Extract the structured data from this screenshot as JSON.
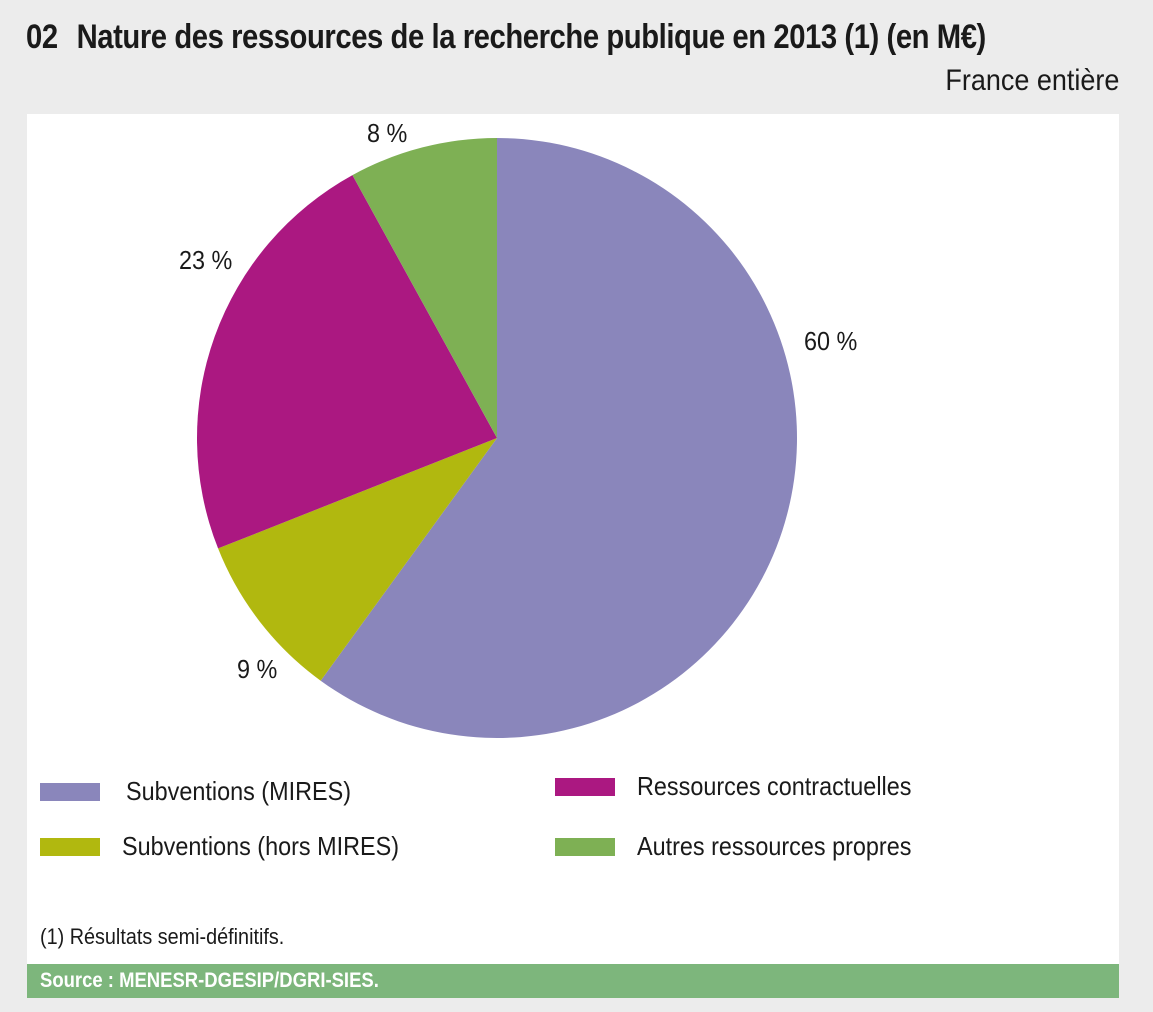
{
  "header": {
    "number": "02",
    "title": "Nature des ressources de la recherche publique en 2013 (1) (en M€)",
    "subtitle": "France entière"
  },
  "chart_data": {
    "type": "pie",
    "title": "Nature des ressources de la recherche publique en 2013 (1) (en M€)",
    "subtitle": "France entière",
    "slices": [
      {
        "name": "Subventions (MIRES)",
        "value": 60,
        "label": "60 %",
        "color": "#8a86bb"
      },
      {
        "name": "Subventions (hors MIRES)",
        "value": 9,
        "label": "9 %",
        "color": "#b1b80f"
      },
      {
        "name": "Ressources contractuelles",
        "value": 23,
        "label": "23 %",
        "color": "#ab1881"
      },
      {
        "name": "Autres ressources propres",
        "value": 8,
        "label": "8 %",
        "color": "#7eb054"
      }
    ],
    "legend": "bottom"
  },
  "legend": [
    {
      "label": "Subventions (MIRES)",
      "color": "#8a86bb"
    },
    {
      "label": "Ressources contractuelles",
      "color": "#ab1881"
    },
    {
      "label": "Subventions (hors MIRES)",
      "color": "#b1b80f"
    },
    {
      "label": "Autres ressources propres",
      "color": "#7eb054"
    }
  ],
  "footnote": "(1) Résultats semi-définitifs.",
  "source": "Source : MENESR-DGESIP/DGRI-SIES."
}
